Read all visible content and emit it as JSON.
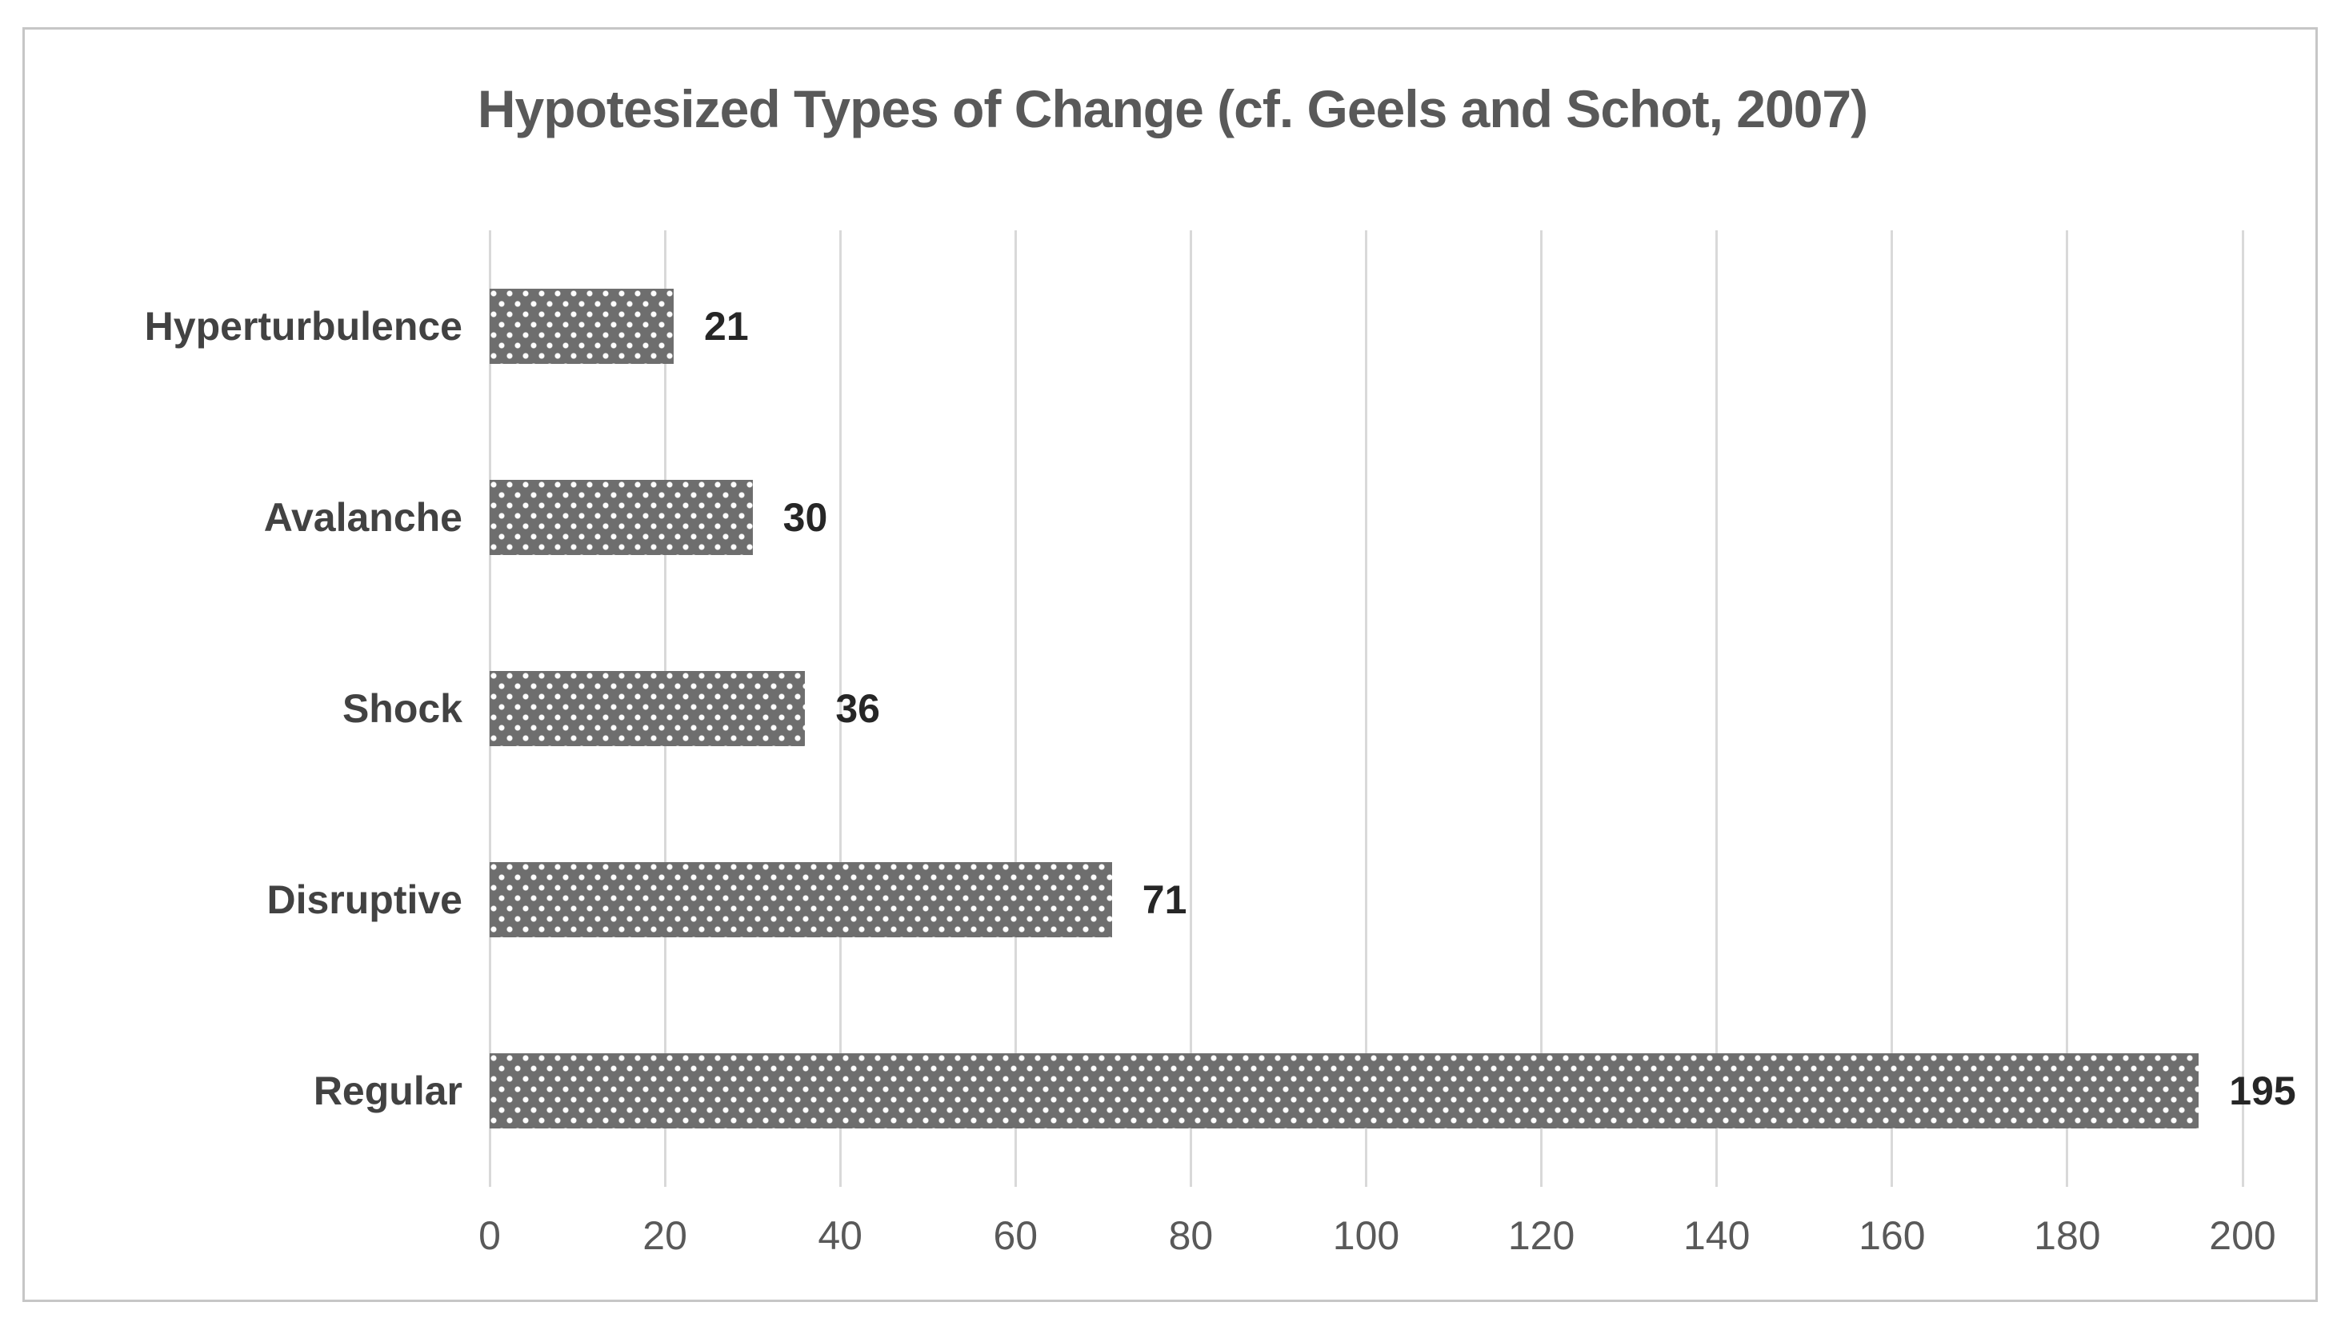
{
  "chart_data": {
    "type": "bar",
    "orientation": "horizontal",
    "title": "Hypotesized Types of Change (cf. Geels and Schot, 2007)",
    "categories": [
      "Hyperturbulence",
      "Avalanche",
      "Shock",
      "Disruptive",
      "Regular"
    ],
    "values": [
      21,
      30,
      36,
      71,
      195
    ],
    "data_labels": [
      "21",
      "30",
      "36",
      "71",
      "195"
    ],
    "xlabel": "",
    "ylabel": "",
    "xlim": [
      0,
      200
    ],
    "x_ticks": [
      0,
      20,
      40,
      60,
      80,
      100,
      120,
      140,
      160,
      180,
      200
    ],
    "grid": "vertical-major",
    "legend": "none",
    "bar_pattern": "gray fill with offset white dot pattern",
    "colors": {
      "background": "#ffffff",
      "frame_border": "#c6c6c6",
      "gridline": "#d9d9d9",
      "bar_fill": "#6e6e6e",
      "bar_pattern_dot": "#ffffff",
      "title_text": "#595959",
      "category_text": "#424242",
      "value_text": "#262626",
      "tick_text": "#595959"
    }
  }
}
